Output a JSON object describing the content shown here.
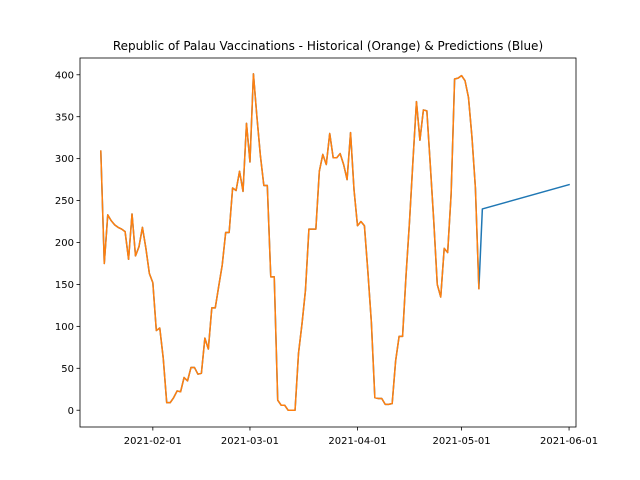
{
  "chart_data": {
    "type": "line",
    "title": "Republic of Palau Vaccinations - Historical (Orange) & Predictions (Blue)",
    "xlabel": "",
    "ylabel": "",
    "x_range": [
      "2021-01-11",
      "2021-06-03"
    ],
    "y_range": [
      -20,
      420
    ],
    "x_ticks": [
      "2021-02-01",
      "2021-03-01",
      "2021-04-01",
      "2021-05-01",
      "2021-06-01"
    ],
    "y_ticks": [
      0,
      50,
      100,
      150,
      200,
      250,
      300,
      350,
      400
    ],
    "grid": false,
    "legend": "none",
    "series": [
      {
        "color": "#1f77b4",
        "points": [
          {
            "x": "2021-01-17",
            "y": 309
          },
          {
            "x": "2021-01-18",
            "y": 175
          },
          {
            "x": "2021-01-19",
            "y": 233
          },
          {
            "x": "2021-01-20",
            "y": 226
          },
          {
            "x": "2021-01-21",
            "y": 221
          },
          {
            "x": "2021-01-22",
            "y": 218
          },
          {
            "x": "2021-01-23",
            "y": 216
          },
          {
            "x": "2021-01-24",
            "y": 213
          },
          {
            "x": "2021-01-25",
            "y": 180
          },
          {
            "x": "2021-01-26",
            "y": 234
          },
          {
            "x": "2021-01-27",
            "y": 184
          },
          {
            "x": "2021-01-28",
            "y": 195
          },
          {
            "x": "2021-01-29",
            "y": 218
          },
          {
            "x": "2021-01-30",
            "y": 193
          },
          {
            "x": "2021-01-31",
            "y": 163
          },
          {
            "x": "2021-02-01",
            "y": 152
          },
          {
            "x": "2021-02-02",
            "y": 95
          },
          {
            "x": "2021-02-03",
            "y": 98
          },
          {
            "x": "2021-02-04",
            "y": 62
          },
          {
            "x": "2021-02-05",
            "y": 9
          },
          {
            "x": "2021-02-06",
            "y": 9
          },
          {
            "x": "2021-02-07",
            "y": 15
          },
          {
            "x": "2021-02-08",
            "y": 23
          },
          {
            "x": "2021-02-09",
            "y": 22
          },
          {
            "x": "2021-02-10",
            "y": 39
          },
          {
            "x": "2021-02-11",
            "y": 35
          },
          {
            "x": "2021-02-12",
            "y": 51
          },
          {
            "x": "2021-02-13",
            "y": 51
          },
          {
            "x": "2021-02-14",
            "y": 43
          },
          {
            "x": "2021-02-15",
            "y": 44
          },
          {
            "x": "2021-02-16",
            "y": 86
          },
          {
            "x": "2021-02-17",
            "y": 73
          },
          {
            "x": "2021-02-18",
            "y": 122
          },
          {
            "x": "2021-02-19",
            "y": 122
          },
          {
            "x": "2021-02-20",
            "y": 148
          },
          {
            "x": "2021-02-21",
            "y": 173
          },
          {
            "x": "2021-02-22",
            "y": 212
          },
          {
            "x": "2021-02-23",
            "y": 212
          },
          {
            "x": "2021-02-24",
            "y": 265
          },
          {
            "x": "2021-02-25",
            "y": 262
          },
          {
            "x": "2021-02-26",
            "y": 285
          },
          {
            "x": "2021-02-27",
            "y": 261
          },
          {
            "x": "2021-02-28",
            "y": 342
          },
          {
            "x": "2021-03-01",
            "y": 296
          },
          {
            "x": "2021-03-02",
            "y": 401
          },
          {
            "x": "2021-03-03",
            "y": 350
          },
          {
            "x": "2021-03-04",
            "y": 304
          },
          {
            "x": "2021-03-05",
            "y": 268
          },
          {
            "x": "2021-03-06",
            "y": 268
          },
          {
            "x": "2021-03-07",
            "y": 159
          },
          {
            "x": "2021-03-08",
            "y": 159
          },
          {
            "x": "2021-03-09",
            "y": 12
          },
          {
            "x": "2021-03-10",
            "y": 6
          },
          {
            "x": "2021-03-11",
            "y": 6
          },
          {
            "x": "2021-03-12",
            "y": 0
          },
          {
            "x": "2021-03-13",
            "y": 0
          },
          {
            "x": "2021-03-14",
            "y": 0
          },
          {
            "x": "2021-03-15",
            "y": 68
          },
          {
            "x": "2021-03-16",
            "y": 103
          },
          {
            "x": "2021-03-17",
            "y": 143
          },
          {
            "x": "2021-03-18",
            "y": 216
          },
          {
            "x": "2021-03-19",
            "y": 216
          },
          {
            "x": "2021-03-20",
            "y": 216
          },
          {
            "x": "2021-03-21",
            "y": 285
          },
          {
            "x": "2021-03-22",
            "y": 305
          },
          {
            "x": "2021-03-23",
            "y": 293
          },
          {
            "x": "2021-03-24",
            "y": 330
          },
          {
            "x": "2021-03-25",
            "y": 301
          },
          {
            "x": "2021-03-26",
            "y": 301
          },
          {
            "x": "2021-03-27",
            "y": 306
          },
          {
            "x": "2021-03-28",
            "y": 293
          },
          {
            "x": "2021-03-29",
            "y": 275
          },
          {
            "x": "2021-03-30",
            "y": 331
          },
          {
            "x": "2021-03-31",
            "y": 263
          },
          {
            "x": "2021-04-01",
            "y": 220
          },
          {
            "x": "2021-04-02",
            "y": 225
          },
          {
            "x": "2021-04-03",
            "y": 220
          },
          {
            "x": "2021-04-04",
            "y": 165
          },
          {
            "x": "2021-04-05",
            "y": 105
          },
          {
            "x": "2021-04-06",
            "y": 15
          },
          {
            "x": "2021-04-07",
            "y": 14
          },
          {
            "x": "2021-04-08",
            "y": 14
          },
          {
            "x": "2021-04-09",
            "y": 7
          },
          {
            "x": "2021-04-10",
            "y": 7
          },
          {
            "x": "2021-04-11",
            "y": 8
          },
          {
            "x": "2021-04-12",
            "y": 59
          },
          {
            "x": "2021-04-13",
            "y": 88
          },
          {
            "x": "2021-04-14",
            "y": 88
          },
          {
            "x": "2021-04-15",
            "y": 161
          },
          {
            "x": "2021-04-16",
            "y": 225
          },
          {
            "x": "2021-04-17",
            "y": 298
          },
          {
            "x": "2021-04-18",
            "y": 368
          },
          {
            "x": "2021-04-19",
            "y": 322
          },
          {
            "x": "2021-04-20",
            "y": 358
          },
          {
            "x": "2021-04-21",
            "y": 357
          },
          {
            "x": "2021-04-22",
            "y": 292
          },
          {
            "x": "2021-04-23",
            "y": 225
          },
          {
            "x": "2021-04-24",
            "y": 150
          },
          {
            "x": "2021-04-25",
            "y": 135
          },
          {
            "x": "2021-04-26",
            "y": 193
          },
          {
            "x": "2021-04-27",
            "y": 188
          },
          {
            "x": "2021-04-28",
            "y": 258
          },
          {
            "x": "2021-04-29",
            "y": 395
          },
          {
            "x": "2021-04-30",
            "y": 396
          },
          {
            "x": "2021-05-01",
            "y": 399
          },
          {
            "x": "2021-05-02",
            "y": 393
          },
          {
            "x": "2021-05-03",
            "y": 373
          },
          {
            "x": "2021-05-04",
            "y": 326
          },
          {
            "x": "2021-05-05",
            "y": 265
          },
          {
            "x": "2021-05-06",
            "y": 145
          },
          {
            "x": "2021-05-07",
            "y": 240
          },
          {
            "x": "2021-06-01",
            "y": 269
          }
        ]
      },
      {
        "color": "#ff7f0e",
        "points": [
          {
            "x": "2021-01-17",
            "y": 309
          },
          {
            "x": "2021-01-18",
            "y": 175
          },
          {
            "x": "2021-01-19",
            "y": 233
          },
          {
            "x": "2021-01-20",
            "y": 226
          },
          {
            "x": "2021-01-21",
            "y": 221
          },
          {
            "x": "2021-01-22",
            "y": 218
          },
          {
            "x": "2021-01-23",
            "y": 216
          },
          {
            "x": "2021-01-24",
            "y": 213
          },
          {
            "x": "2021-01-25",
            "y": 180
          },
          {
            "x": "2021-01-26",
            "y": 234
          },
          {
            "x": "2021-01-27",
            "y": 184
          },
          {
            "x": "2021-01-28",
            "y": 195
          },
          {
            "x": "2021-01-29",
            "y": 218
          },
          {
            "x": "2021-01-30",
            "y": 193
          },
          {
            "x": "2021-01-31",
            "y": 163
          },
          {
            "x": "2021-02-01",
            "y": 152
          },
          {
            "x": "2021-02-02",
            "y": 95
          },
          {
            "x": "2021-02-03",
            "y": 98
          },
          {
            "x": "2021-02-04",
            "y": 62
          },
          {
            "x": "2021-02-05",
            "y": 9
          },
          {
            "x": "2021-02-06",
            "y": 9
          },
          {
            "x": "2021-02-07",
            "y": 15
          },
          {
            "x": "2021-02-08",
            "y": 23
          },
          {
            "x": "2021-02-09",
            "y": 22
          },
          {
            "x": "2021-02-10",
            "y": 39
          },
          {
            "x": "2021-02-11",
            "y": 35
          },
          {
            "x": "2021-02-12",
            "y": 51
          },
          {
            "x": "2021-02-13",
            "y": 51
          },
          {
            "x": "2021-02-14",
            "y": 43
          },
          {
            "x": "2021-02-15",
            "y": 44
          },
          {
            "x": "2021-02-16",
            "y": 86
          },
          {
            "x": "2021-02-17",
            "y": 73
          },
          {
            "x": "2021-02-18",
            "y": 122
          },
          {
            "x": "2021-02-19",
            "y": 122
          },
          {
            "x": "2021-02-20",
            "y": 148
          },
          {
            "x": "2021-02-21",
            "y": 173
          },
          {
            "x": "2021-02-22",
            "y": 212
          },
          {
            "x": "2021-02-23",
            "y": 212
          },
          {
            "x": "2021-02-24",
            "y": 265
          },
          {
            "x": "2021-02-25",
            "y": 262
          },
          {
            "x": "2021-02-26",
            "y": 285
          },
          {
            "x": "2021-02-27",
            "y": 261
          },
          {
            "x": "2021-02-28",
            "y": 342
          },
          {
            "x": "2021-03-01",
            "y": 296
          },
          {
            "x": "2021-03-02",
            "y": 401
          },
          {
            "x": "2021-03-03",
            "y": 350
          },
          {
            "x": "2021-03-04",
            "y": 304
          },
          {
            "x": "2021-03-05",
            "y": 268
          },
          {
            "x": "2021-03-06",
            "y": 268
          },
          {
            "x": "2021-03-07",
            "y": 159
          },
          {
            "x": "2021-03-08",
            "y": 159
          },
          {
            "x": "2021-03-09",
            "y": 12
          },
          {
            "x": "2021-03-10",
            "y": 6
          },
          {
            "x": "2021-03-11",
            "y": 6
          },
          {
            "x": "2021-03-12",
            "y": 0
          },
          {
            "x": "2021-03-13",
            "y": 0
          },
          {
            "x": "2021-03-14",
            "y": 0
          },
          {
            "x": "2021-03-15",
            "y": 68
          },
          {
            "x": "2021-03-16",
            "y": 103
          },
          {
            "x": "2021-03-17",
            "y": 143
          },
          {
            "x": "2021-03-18",
            "y": 216
          },
          {
            "x": "2021-03-19",
            "y": 216
          },
          {
            "x": "2021-03-20",
            "y": 216
          },
          {
            "x": "2021-03-21",
            "y": 285
          },
          {
            "x": "2021-03-22",
            "y": 305
          },
          {
            "x": "2021-03-23",
            "y": 293
          },
          {
            "x": "2021-03-24",
            "y": 330
          },
          {
            "x": "2021-03-25",
            "y": 301
          },
          {
            "x": "2021-03-26",
            "y": 301
          },
          {
            "x": "2021-03-27",
            "y": 306
          },
          {
            "x": "2021-03-28",
            "y": 293
          },
          {
            "x": "2021-03-29",
            "y": 275
          },
          {
            "x": "2021-03-30",
            "y": 331
          },
          {
            "x": "2021-03-31",
            "y": 263
          },
          {
            "x": "2021-04-01",
            "y": 220
          },
          {
            "x": "2021-04-02",
            "y": 225
          },
          {
            "x": "2021-04-03",
            "y": 220
          },
          {
            "x": "2021-04-04",
            "y": 165
          },
          {
            "x": "2021-04-05",
            "y": 105
          },
          {
            "x": "2021-04-06",
            "y": 15
          },
          {
            "x": "2021-04-07",
            "y": 14
          },
          {
            "x": "2021-04-08",
            "y": 14
          },
          {
            "x": "2021-04-09",
            "y": 7
          },
          {
            "x": "2021-04-10",
            "y": 7
          },
          {
            "x": "2021-04-11",
            "y": 8
          },
          {
            "x": "2021-04-12",
            "y": 59
          },
          {
            "x": "2021-04-13",
            "y": 88
          },
          {
            "x": "2021-04-14",
            "y": 88
          },
          {
            "x": "2021-04-15",
            "y": 161
          },
          {
            "x": "2021-04-16",
            "y": 225
          },
          {
            "x": "2021-04-17",
            "y": 298
          },
          {
            "x": "2021-04-18",
            "y": 368
          },
          {
            "x": "2021-04-19",
            "y": 322
          },
          {
            "x": "2021-04-20",
            "y": 358
          },
          {
            "x": "2021-04-21",
            "y": 357
          },
          {
            "x": "2021-04-22",
            "y": 292
          },
          {
            "x": "2021-04-23",
            "y": 225
          },
          {
            "x": "2021-04-24",
            "y": 150
          },
          {
            "x": "2021-04-25",
            "y": 135
          },
          {
            "x": "2021-04-26",
            "y": 193
          },
          {
            "x": "2021-04-27",
            "y": 188
          },
          {
            "x": "2021-04-28",
            "y": 258
          },
          {
            "x": "2021-04-29",
            "y": 395
          },
          {
            "x": "2021-04-30",
            "y": 396
          },
          {
            "x": "2021-05-01",
            "y": 399
          },
          {
            "x": "2021-05-02",
            "y": 393
          },
          {
            "x": "2021-05-03",
            "y": 373
          },
          {
            "x": "2021-05-04",
            "y": 326
          },
          {
            "x": "2021-05-05",
            "y": 265
          },
          {
            "x": "2021-05-06",
            "y": 145
          }
        ]
      }
    ]
  }
}
